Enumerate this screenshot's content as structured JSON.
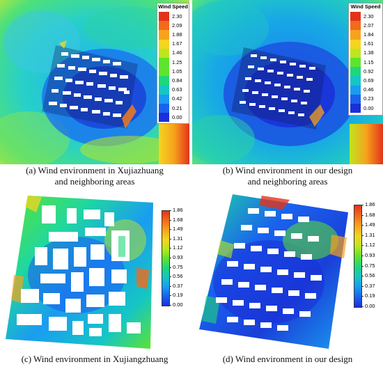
{
  "figure": {
    "panels": [
      {
        "id": "a",
        "caption_line1": "(a) Wind environment in Xujiazhuang",
        "caption_line2": "and neighboring areas",
        "legend_title": "Wind Speed",
        "legend_values": [
          "2.30",
          "2.09",
          "1.88",
          "1.67",
          "1.46",
          "1.25",
          "1.05",
          "0.84",
          "0.63",
          "0.42",
          "0.21",
          "0.00"
        ]
      },
      {
        "id": "b",
        "caption_line1": "(b) Wind environment in our design",
        "caption_line2": "and neighboring areas",
        "legend_title": "Wind Speed",
        "legend_values": [
          "2.30",
          "2.07",
          "1.84",
          "1.61",
          "1.38",
          "1.15",
          "0.92",
          "0.69",
          "0.46",
          "0.23",
          "0.00"
        ]
      },
      {
        "id": "c",
        "caption_line1": "(c) Wind environment in Xujiangzhuang",
        "legend_values": [
          "1.86",
          "1.68",
          "1.49",
          "1.31",
          "1.12",
          "0.93",
          "0.75",
          "0.56",
          "0.37",
          "0.19",
          "0.00"
        ]
      },
      {
        "id": "d",
        "caption_line1": "(d) Wind environment in our design",
        "legend_values": [
          "1.86",
          "1.68",
          "1.49",
          "1.31",
          "1.12",
          "0.93",
          "0.75",
          "0.56",
          "0.37",
          "0.19",
          "0.00"
        ]
      }
    ],
    "colormap": [
      "#e2331a",
      "#f26a1b",
      "#f7a21d",
      "#f4d51f",
      "#bde61f",
      "#5fe42c",
      "#1fd77a",
      "#15c6c4",
      "#1a9cf0",
      "#1a62ee",
      "#1a2fd8"
    ]
  }
}
